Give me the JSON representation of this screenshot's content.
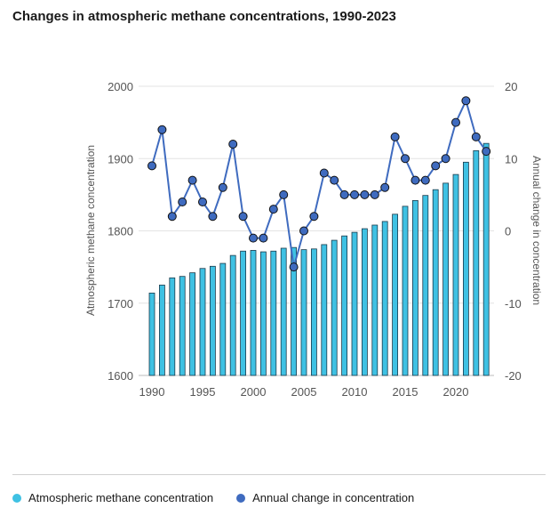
{
  "chart_data": {
    "type": "bar",
    "title": "Changes in atmospheric methane concentrations, 1990-2023",
    "x": [
      1990,
      1991,
      1992,
      1993,
      1994,
      1995,
      1996,
      1997,
      1998,
      1999,
      2000,
      2001,
      2002,
      2003,
      2004,
      2005,
      2006,
      2007,
      2008,
      2009,
      2010,
      2011,
      2012,
      2013,
      2014,
      2015,
      2016,
      2017,
      2018,
      2019,
      2020,
      2021,
      2022,
      2023
    ],
    "x_ticks": [
      1990,
      1995,
      2000,
      2005,
      2010,
      2015,
      2020
    ],
    "ylabel": "Atmospheric methane concentration",
    "y2label": "Annual change in concentration",
    "ylim": [
      1600,
      2000
    ],
    "y_ticks": [
      1600,
      1700,
      1800,
      1900,
      2000
    ],
    "y2lim": [
      -20,
      20
    ],
    "y2_ticks": [
      -20,
      -10,
      0,
      10,
      20
    ],
    "grid": true,
    "legend_position": "bottom-left",
    "series": [
      {
        "name": "Atmospheric methane concentration",
        "type": "bar",
        "axis": "left",
        "color": "#3fc1e3",
        "values": [
          1714,
          1725,
          1735,
          1737,
          1742,
          1748,
          1751,
          1755,
          1766,
          1772,
          1773,
          1771,
          1772,
          1776,
          1777,
          1774,
          1775,
          1781,
          1787,
          1793,
          1798,
          1803,
          1808,
          1813,
          1823,
          1834,
          1842,
          1849,
          1857,
          1866,
          1878,
          1895,
          1911,
          1921
        ]
      },
      {
        "name": "Annual change in concentration",
        "type": "line",
        "axis": "right",
        "color": "#3f6bbf",
        "values": [
          9,
          14,
          2,
          4,
          7,
          4,
          2,
          6,
          12,
          2,
          -1,
          -1,
          3,
          5,
          -5,
          0,
          2,
          8,
          7,
          5,
          5,
          5,
          5,
          6,
          13,
          10,
          7,
          7,
          9,
          10,
          15,
          18,
          13,
          11
        ]
      }
    ]
  }
}
